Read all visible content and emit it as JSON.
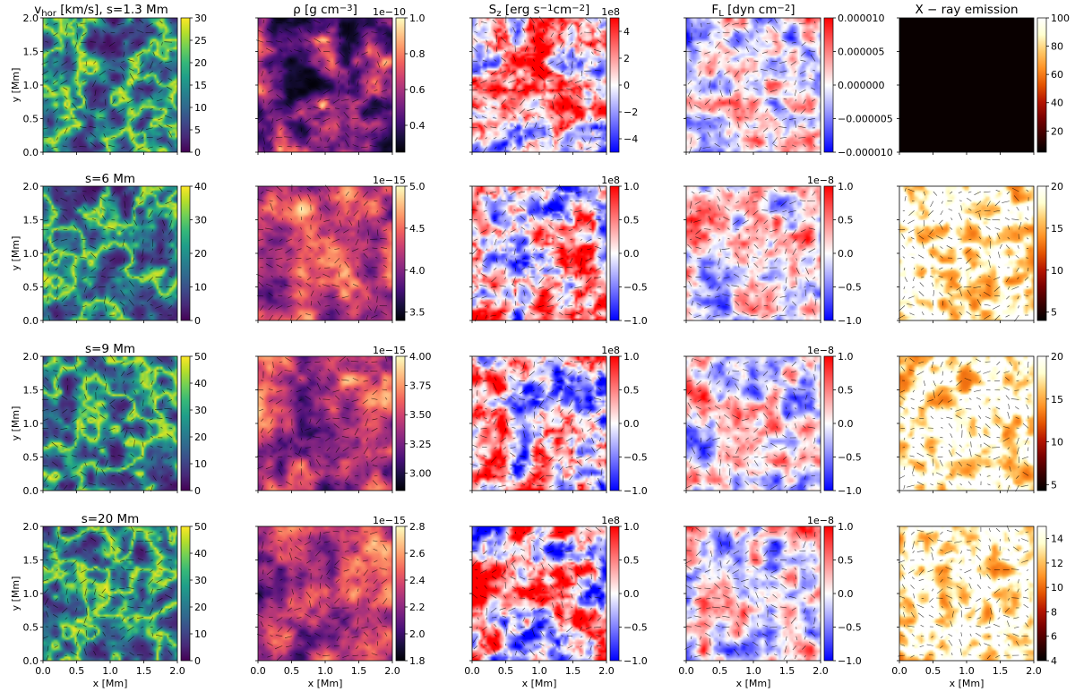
{
  "chart_data": {
    "type": "heatmap",
    "layout": "4 rows x 5 columns of 2D maps with colorbars and overlaid vector arrows",
    "xlabel": "x [Mm]",
    "ylabel": "y [Mm]",
    "xlim": [
      0.0,
      2.0
    ],
    "ylim": [
      0.0,
      2.0
    ],
    "x_ticks": [
      "0.0",
      "0.5",
      "1.0",
      "1.5",
      "2.0"
    ],
    "y_ticks": [
      "0.0",
      "0.5",
      "1.0",
      "1.5",
      "2.0"
    ],
    "column_titles": [
      "v<sub>hor</sub> [km/s],  s=1.3 Mm",
      "ρ [g cm<sup>−3</sup>]",
      "S<sub>z</sub> [erg s<sup>−1</sup>cm<sup>−2</sup>]",
      "F<sub>L</sub> [dyn cm<sup>−2</sup>]",
      "X − ray emission"
    ],
    "row_titles": [
      "",
      "s=6 Mm",
      "s=9 Mm",
      "s=20 Mm"
    ],
    "colormaps": [
      "viridis",
      "magma",
      "bwr",
      "bwr",
      "gist_heat"
    ],
    "panels": [
      [
        {
          "cmap": "viridis",
          "clim": [
            0,
            30
          ],
          "ticks": [
            "0",
            "5",
            "10",
            "15",
            "20",
            "25",
            "30"
          ]
        },
        {
          "cmap": "magma",
          "clim": [
            0.25,
            1.0
          ],
          "multiplier": "1e−10",
          "ticks": [
            "0.4",
            "0.6",
            "0.8",
            "1.0"
          ]
        },
        {
          "cmap": "bwr",
          "clim": [
            -5,
            5
          ],
          "multiplier": "1e8",
          "ticks": [
            "−4",
            "−2",
            "0",
            "2",
            "4"
          ]
        },
        {
          "cmap": "bwr",
          "clim": [
            -1e-05,
            1e-05
          ],
          "ticks": [
            "−0.000010",
            "−0.000005",
            "0.000000",
            "0.000005",
            "0.000010"
          ]
        },
        {
          "cmap": "gist_heat",
          "clim": [
            5,
            100
          ],
          "ticks": [
            "20",
            "40",
            "60",
            "80",
            "100"
          ]
        }
      ],
      [
        {
          "cmap": "viridis",
          "clim": [
            0,
            40
          ],
          "ticks": [
            "0",
            "10",
            "20",
            "30",
            "40"
          ]
        },
        {
          "cmap": "magma",
          "clim": [
            3.4,
            5.0
          ],
          "multiplier": "1e−15",
          "ticks": [
            "3.5",
            "4.0",
            "4.5",
            "5.0"
          ]
        },
        {
          "cmap": "bwr",
          "clim": [
            -1.0,
            1.0
          ],
          "multiplier": "1e8",
          "ticks": [
            "−1.0",
            "−0.5",
            "0.0",
            "0.5",
            "1.0"
          ]
        },
        {
          "cmap": "bwr",
          "clim": [
            -1.0,
            1.0
          ],
          "multiplier": "1e−8",
          "ticks": [
            "−1.0",
            "−0.5",
            "0.0",
            "0.5",
            "1.0"
          ]
        },
        {
          "cmap": "gist_heat",
          "clim": [
            4,
            20
          ],
          "ticks": [
            "5",
            "10",
            "15",
            "20"
          ]
        }
      ],
      [
        {
          "cmap": "viridis",
          "clim": [
            0,
            50
          ],
          "ticks": [
            "0",
            "10",
            "20",
            "30",
            "40",
            "50"
          ]
        },
        {
          "cmap": "magma",
          "clim": [
            2.85,
            4.0
          ],
          "multiplier": "1e−15",
          "ticks": [
            "3.00",
            "3.25",
            "3.50",
            "3.75",
            "4.00"
          ]
        },
        {
          "cmap": "bwr",
          "clim": [
            -1.0,
            1.0
          ],
          "multiplier": "1e8",
          "ticks": [
            "−1.0",
            "−0.5",
            "0.0",
            "0.5",
            "1.0"
          ]
        },
        {
          "cmap": "bwr",
          "clim": [
            -1.0,
            1.0
          ],
          "multiplier": "1e−8",
          "ticks": [
            "−1.0",
            "−0.5",
            "0.0",
            "0.5",
            "1.0"
          ]
        },
        {
          "cmap": "gist_heat",
          "clim": [
            4.3,
            20
          ],
          "ticks": [
            "5",
            "10",
            "15",
            "20"
          ]
        }
      ],
      [
        {
          "cmap": "viridis",
          "clim": [
            0,
            50
          ],
          "ticks": [
            "0",
            "10",
            "20",
            "30",
            "40",
            "50"
          ]
        },
        {
          "cmap": "magma",
          "clim": [
            1.8,
            2.8
          ],
          "multiplier": "1e−15",
          "ticks": [
            "1.8",
            "2.0",
            "2.2",
            "2.4",
            "2.6",
            "2.8"
          ]
        },
        {
          "cmap": "bwr",
          "clim": [
            -1.0,
            1.0
          ],
          "multiplier": "1e8",
          "ticks": [
            "−1.0",
            "−0.5",
            "0.0",
            "0.5",
            "1.0"
          ]
        },
        {
          "cmap": "bwr",
          "clim": [
            -1.0,
            1.0
          ],
          "multiplier": "1e−8",
          "ticks": [
            "−1.0",
            "−0.5",
            "0.0",
            "0.5",
            "1.0"
          ]
        },
        {
          "cmap": "gist_heat",
          "clim": [
            4,
            15
          ],
          "ticks": [
            "4",
            "6",
            "8",
            "10",
            "12",
            "14"
          ]
        }
      ]
    ]
  }
}
